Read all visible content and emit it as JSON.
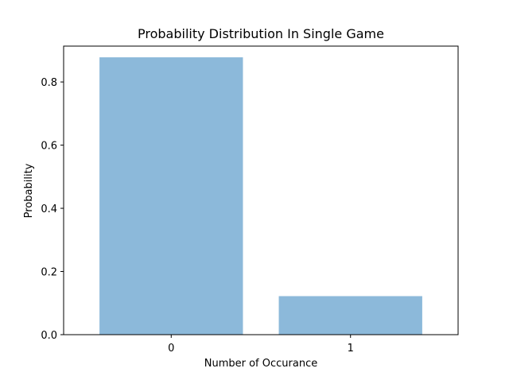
{
  "chart_data": {
    "type": "bar",
    "title": "Probability Distribution In Single Game",
    "xlabel": "Number of Occurance",
    "ylabel": "Probability",
    "categories": [
      "0",
      "1"
    ],
    "values": [
      0.878,
      0.122
    ],
    "ylim": [
      0,
      0.9135
    ],
    "yticks": [
      0.0,
      0.2,
      0.4,
      0.6,
      0.8
    ],
    "ytick_labels": [
      "0.0",
      "0.2",
      "0.4",
      "0.6",
      "0.8"
    ],
    "bar_color": "#8cb9da",
    "grid": false,
    "legend": "none"
  }
}
